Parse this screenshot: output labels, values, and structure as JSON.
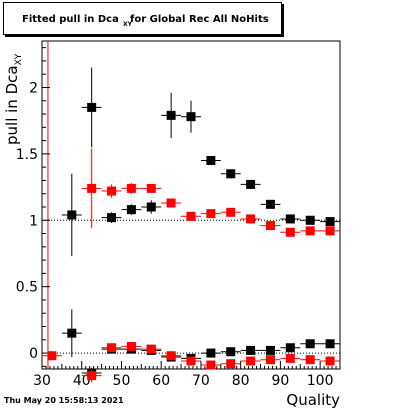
{
  "title": {
    "main": "Fitted pull in Dca",
    "sub": "XY",
    "rest": " for Global Rec All NoHits"
  },
  "ylabel": {
    "main": "pull in Dca",
    "sub": "XY"
  },
  "xlabel": "Quality",
  "timestamp": "Thu May 20 15:58:13 2021",
  "colors": {
    "black_series": "#000000",
    "red_series": "#ff0000",
    "red_line": "#ff0000"
  },
  "chart_data": {
    "type": "scatter",
    "xlim": [
      30,
      105
    ],
    "ylim": [
      -0.12,
      2.35
    ],
    "x_ticks": [
      30,
      40,
      50,
      60,
      70,
      80,
      90,
      100
    ],
    "y_ticks": [
      0,
      0.5,
      1,
      1.5,
      2
    ],
    "x_tick_labels": [
      "30",
      "40",
      "50",
      "60",
      "70",
      "80",
      "90",
      "100"
    ],
    "y_tick_labels": [
      "0",
      "0.5",
      "1",
      "1.5",
      "2"
    ],
    "x_halfwidth": 2.5,
    "reference_line": {
      "x": 31.5
    },
    "series": [
      {
        "color": "#000000",
        "x": [
          37.5,
          42.5,
          47.5,
          52.5,
          57.5,
          62.5,
          67.5,
          72.5,
          77.5,
          82.5,
          87.5,
          92.5,
          97.5,
          102.5
        ],
        "y": [
          1.04,
          1.85,
          1.02,
          1.08,
          1.1,
          1.79,
          1.78,
          1.45,
          1.35,
          1.27,
          1.12,
          1.01,
          1.0,
          0.99
        ],
        "yerr": [
          0.31,
          0.3,
          0.04,
          0.04,
          0.05,
          0.17,
          0.12,
          0.03,
          0.03,
          0.02,
          0.02,
          0.02,
          0.02,
          0.02
        ]
      },
      {
        "color": "#ff0000",
        "x": [
          42.5,
          47.5,
          52.5,
          57.5,
          62.5,
          67.5,
          72.5,
          77.5,
          82.5,
          87.5,
          92.5,
          97.5,
          102.5
        ],
        "y": [
          1.24,
          1.22,
          1.24,
          1.24,
          1.13,
          1.03,
          1.05,
          1.06,
          1.01,
          0.96,
          0.91,
          0.92,
          0.92
        ],
        "yerr": [
          0.3,
          0.05,
          0.04,
          0.03,
          0.03,
          0.03,
          0.02,
          0.02,
          0.02,
          0.02,
          0.02,
          0.02,
          0.02
        ]
      },
      {
        "color": "#000000",
        "x": [
          37.5,
          42.5,
          47.5,
          52.5,
          57.5,
          62.5,
          67.5,
          72.5,
          77.5,
          82.5,
          87.5,
          92.5,
          97.5,
          102.5
        ],
        "y": [
          0.15,
          -0.15,
          0.03,
          0.03,
          0.02,
          -0.03,
          -0.04,
          0.0,
          0.01,
          0.02,
          0.02,
          0.04,
          0.07,
          0.07
        ],
        "yerr": [
          0.18,
          0.04,
          0.02,
          0.02,
          0.02,
          0.02,
          0.02,
          0.01,
          0.01,
          0.01,
          0.01,
          0.01,
          0.01,
          0.01
        ]
      },
      {
        "color": "#ff0000",
        "x": [
          32.5,
          42.5,
          47.5,
          52.5,
          57.5,
          62.5,
          67.5,
          72.5,
          77.5,
          82.5,
          87.5,
          92.5,
          97.5,
          102.5
        ],
        "y": [
          -0.02,
          -0.17,
          0.04,
          0.05,
          0.03,
          -0.02,
          -0.06,
          -0.09,
          -0.08,
          -0.06,
          -0.05,
          -0.04,
          -0.05,
          -0.06
        ],
        "yerr": [
          0.01,
          0.05,
          0.02,
          0.02,
          0.02,
          0.02,
          0.02,
          0.01,
          0.01,
          0.01,
          0.01,
          0.01,
          0.01,
          0.01
        ]
      }
    ]
  }
}
